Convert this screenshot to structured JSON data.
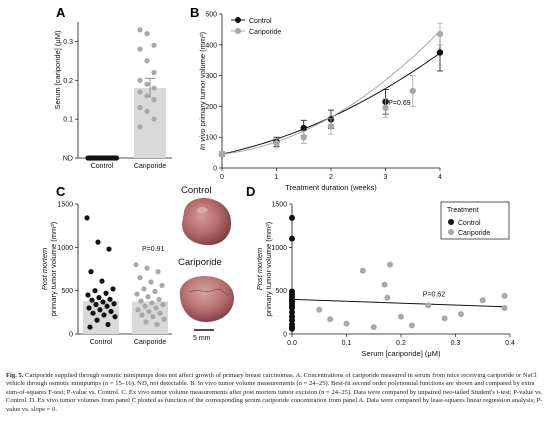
{
  "colors": {
    "control": "#111111",
    "cariporide": "#a8a8a8",
    "bar": "#d9d9d9",
    "tumor": "#b36b6b"
  },
  "panels": {
    "A": {
      "letter": "A"
    },
    "B": {
      "letter": "B"
    },
    "C": {
      "letter": "C"
    },
    "D": {
      "letter": "D"
    }
  },
  "chart_data": [
    {
      "panel": "A",
      "type": "bar",
      "categories": [
        "Control",
        "Cariporide"
      ],
      "ylabel": "Serum [cariporide] (μM)",
      "ylim": [
        0,
        0.35
      ],
      "yticks": [
        "ND",
        "0.1",
        "0.2",
        "0.3"
      ],
      "ytick_values": [
        0,
        0.1,
        0.2,
        0.3
      ],
      "bar_means": [
        0,
        0.18
      ],
      "bar_sem": [
        0,
        0.025
      ],
      "points": [
        {
          "group": "Control",
          "values": [
            0,
            0,
            0,
            0,
            0,
            0,
            0,
            0,
            0,
            0,
            0,
            0,
            0,
            0,
            0,
            0
          ]
        },
        {
          "group": "Cariporide",
          "values": [
            0.33,
            0.32,
            0.29,
            0.28,
            0.25,
            0.22,
            0.2,
            0.19,
            0.18,
            0.17,
            0.16,
            0.15,
            0.13,
            0.12,
            0.1,
            0.08
          ]
        }
      ]
    },
    {
      "panel": "B",
      "type": "line",
      "xlabel": "Treatment duration (weeks)",
      "ylabel": "In vivo primary tumor volume (mm³)",
      "xlim": [
        0,
        4
      ],
      "ylim": [
        0,
        500
      ],
      "xticks": [
        "0",
        "1",
        "2",
        "3",
        "4"
      ],
      "yticks": [
        "0",
        "100",
        "200",
        "300",
        "400",
        "500"
      ],
      "legend": {
        "position": "top-left",
        "entries": [
          "Control",
          "Cariporide"
        ]
      },
      "annotation": "P=0.69",
      "series": [
        {
          "name": "Control",
          "x": [
            0,
            1,
            1.5,
            2,
            3,
            4
          ],
          "y": [
            45,
            85,
            130,
            158,
            215,
            375
          ],
          "err": [
            8,
            15,
            25,
            30,
            40,
            60
          ]
        },
        {
          "name": "Cariporide",
          "x": [
            0,
            1,
            1.5,
            2,
            3,
            3.5,
            4
          ],
          "y": [
            45,
            80,
            100,
            135,
            195,
            250,
            435
          ],
          "err": [
            8,
            15,
            20,
            25,
            30,
            50,
            35
          ]
        }
      ],
      "fits": [
        {
          "name": "Control",
          "coeffs": [
            45,
            38,
            11
          ]
        },
        {
          "name": "Cariporide",
          "coeffs": [
            45,
            20,
            20
          ]
        }
      ]
    },
    {
      "panel": "C",
      "type": "bar",
      "categories": [
        "Control",
        "Cariporide"
      ],
      "ylabel": "Post mortem primary tumor volume (mm³)",
      "ylim": [
        0,
        1500
      ],
      "yticks": [
        "0",
        "500",
        "1000",
        "1500"
      ],
      "ytick_values": [
        0,
        500,
        1000,
        1500
      ],
      "bar_means": [
        380,
        375
      ],
      "annotation": "P=0.91",
      "points": [
        {
          "group": "Control",
          "values": [
            1340,
            1060,
            980,
            720,
            610,
            520,
            500,
            470,
            450,
            420,
            400,
            390,
            370,
            350,
            340,
            320,
            300,
            280,
            260,
            240,
            220,
            200,
            160,
            110,
            80
          ]
        },
        {
          "group": "Cariporide",
          "values": [
            800,
            760,
            720,
            650,
            600,
            560,
            520,
            490,
            460,
            430,
            400,
            380,
            360,
            340,
            320,
            300,
            280,
            260,
            240,
            220,
            200,
            170,
            140,
            110
          ]
        }
      ]
    },
    {
      "panel": "D",
      "type": "scatter",
      "xlabel": "Serum [cariporide] (μM)",
      "ylabel": "Post mortem primary tumor volume (mm³)",
      "xlim": [
        0,
        0.4
      ],
      "ylim": [
        0,
        1500
      ],
      "xticks": [
        "0.0",
        "0.1",
        "0.2",
        "0.3",
        "0.4"
      ],
      "yticks": [
        "0",
        "500",
        "1000",
        "1500"
      ],
      "legend": {
        "title": "Treatment",
        "position": "top-right",
        "entries": [
          "Control",
          "Cariporide"
        ]
      },
      "annotation": "P=0.62",
      "regression": {
        "intercept": 400,
        "slope": -220
      },
      "series": [
        {
          "name": "Control",
          "x": [
            0,
            0,
            0,
            0,
            0,
            0,
            0,
            0,
            0,
            0,
            0,
            0,
            0,
            0,
            0,
            0
          ],
          "y": [
            1340,
            1100,
            490,
            460,
            430,
            400,
            380,
            350,
            320,
            300,
            250,
            200,
            160,
            110,
            80,
            60
          ]
        },
        {
          "name": "Cariporide",
          "x": [
            0.05,
            0.07,
            0.1,
            0.13,
            0.15,
            0.17,
            0.175,
            0.18,
            0.2,
            0.22,
            0.25,
            0.28,
            0.31,
            0.35,
            0.39,
            0.39
          ],
          "y": [
            280,
            170,
            120,
            730,
            80,
            570,
            420,
            800,
            200,
            100,
            330,
            180,
            230,
            390,
            440,
            300
          ]
        }
      ]
    }
  ],
  "photos": {
    "control_label": "Control",
    "cariporide_label": "Cariporide",
    "scale_label": "5 mm"
  },
  "caption": {
    "figure_label": "Fig. 5.",
    "text": "Cariporide supplied through osmotic minipumps does not affect growth of primary breast carcinomas. A. Concentrations of cariporide measured in serum from mice receiving cariporide or NaCl vehicle through osmotic minipumps (n = 15–16). ND, not detectable. B. In vivo tumor volume measurements (n = 24–25). Best-fit second order polynomial functions are shown and compared by extra sum-of-squares F-test; P-value vs. Control. C. Ex vivo tumor volume measurements after post mortem tumor excision (n = 24–25). Data were compared by unpaired two-tailed Student's t-test; P-value vs. Control. D. Ex vivo tumor volumes from panel C plotted as function of the corresponding serum cariporide concentration from panel A. Data were compared by least-squares linear regression analysis; P-value vs. slope = 0."
  }
}
